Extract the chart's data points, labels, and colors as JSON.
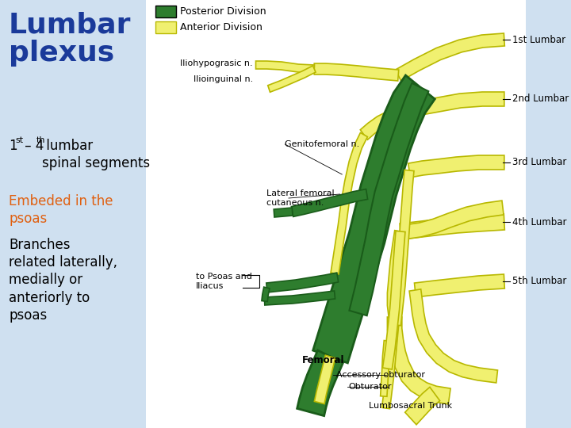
{
  "bg_color": "#cfe0f0",
  "left_panel_color": "#cfe0f0",
  "right_panel_color": "#ffffff",
  "green_color": "#2e7d2e",
  "yellow_color": "#f0f070",
  "yellow_outline": "#b8b800",
  "title_text": "Lumbar\nplexus",
  "title_color": "#1a3a9a",
  "subtitle1_a": "1",
  "subtitle1_b": "st",
  "subtitle1_c": " – 4",
  "subtitle1_d": "th",
  "subtitle1_e": " lumbar\nspinal segments",
  "subtitle2": "Embeded in the\npsoas",
  "subtitle2_color": "#e06010",
  "subtitle3": "Branches\nrelated laterally,\nmedially or\nanteriorly to\npsoas",
  "legend_posterior": "Posterior Division",
  "legend_anterior": "Anterior Division",
  "labels_right": [
    "1st Lumbar",
    "2nd Lumbar",
    "3rd Lumbar",
    "4th Lumbar",
    "5th Lumbar"
  ]
}
